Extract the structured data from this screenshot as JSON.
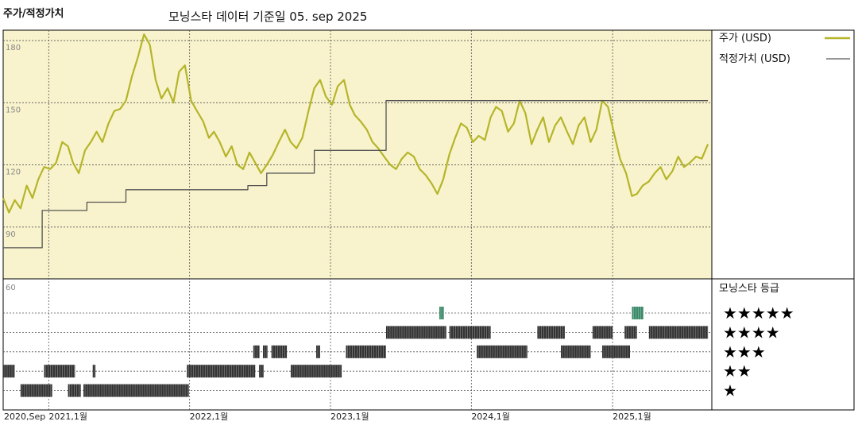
{
  "header": {
    "title": "주가/적정가치",
    "subtitle": "모닝스타 데이터 기준일 05. sep 2025"
  },
  "chart_data": {
    "type": "line",
    "price_panel": {
      "ylim": [
        65,
        185
      ],
      "yticks": [
        180,
        150,
        120,
        90
      ],
      "grid": true,
      "background": "#f8f3cc",
      "series": [
        {
          "name": "주가 (USD)",
          "color": "#b5b52a",
          "points": [
            [
              "2020-09-05",
              104
            ],
            [
              "2020-09-20",
              97
            ],
            [
              "2020-10-05",
              103
            ],
            [
              "2020-10-20",
              99
            ],
            [
              "2020-11-05",
              110
            ],
            [
              "2020-11-20",
              104
            ],
            [
              "2020-12-05",
              113
            ],
            [
              "2020-12-20",
              119
            ],
            [
              "2021-01-05",
              118
            ],
            [
              "2021-01-20",
              121
            ],
            [
              "2021-02-05",
              131
            ],
            [
              "2021-02-20",
              129
            ],
            [
              "2021-03-05",
              121
            ],
            [
              "2021-03-20",
              116
            ],
            [
              "2021-04-05",
              127
            ],
            [
              "2021-04-20",
              131
            ],
            [
              "2021-05-05",
              136
            ],
            [
              "2021-05-20",
              131
            ],
            [
              "2021-06-05",
              140
            ],
            [
              "2021-06-20",
              146
            ],
            [
              "2021-07-05",
              147
            ],
            [
              "2021-07-20",
              151
            ],
            [
              "2021-08-05",
              163
            ],
            [
              "2021-08-20",
              172
            ],
            [
              "2021-09-05",
              183
            ],
            [
              "2021-09-20",
              178
            ],
            [
              "2021-10-05",
              161
            ],
            [
              "2021-10-20",
              152
            ],
            [
              "2021-11-05",
              157
            ],
            [
              "2021-11-20",
              150
            ],
            [
              "2021-12-05",
              165
            ],
            [
              "2021-12-20",
              168
            ],
            [
              "2022-01-05",
              151
            ],
            [
              "2022-01-20",
              146
            ],
            [
              "2022-02-05",
              141
            ],
            [
              "2022-02-20",
              133
            ],
            [
              "2022-03-05",
              136
            ],
            [
              "2022-03-20",
              131
            ],
            [
              "2022-04-05",
              124
            ],
            [
              "2022-04-20",
              129
            ],
            [
              "2022-05-05",
              120
            ],
            [
              "2022-05-20",
              118
            ],
            [
              "2022-06-05",
              126
            ],
            [
              "2022-06-20",
              121
            ],
            [
              "2022-07-05",
              116
            ],
            [
              "2022-07-20",
              120
            ],
            [
              "2022-08-05",
              125
            ],
            [
              "2022-08-20",
              131
            ],
            [
              "2022-09-05",
              137
            ],
            [
              "2022-09-20",
              131
            ],
            [
              "2022-10-05",
              128
            ],
            [
              "2022-10-20",
              133
            ],
            [
              "2022-11-05",
              146
            ],
            [
              "2022-11-20",
              157
            ],
            [
              "2022-12-05",
              161
            ],
            [
              "2022-12-20",
              153
            ],
            [
              "2023-01-05",
              149
            ],
            [
              "2023-01-20",
              158
            ],
            [
              "2023-02-05",
              161
            ],
            [
              "2023-02-20",
              149
            ],
            [
              "2023-03-05",
              144
            ],
            [
              "2023-03-20",
              141
            ],
            [
              "2023-04-05",
              137
            ],
            [
              "2023-04-20",
              131
            ],
            [
              "2023-05-05",
              128
            ],
            [
              "2023-05-20",
              124
            ],
            [
              "2023-06-05",
              120
            ],
            [
              "2023-06-20",
              118
            ],
            [
              "2023-07-05",
              123
            ],
            [
              "2023-07-20",
              126
            ],
            [
              "2023-08-05",
              124
            ],
            [
              "2023-08-20",
              118
            ],
            [
              "2023-09-05",
              115
            ],
            [
              "2023-09-20",
              111
            ],
            [
              "2023-10-05",
              106
            ],
            [
              "2023-10-20",
              113
            ],
            [
              "2023-11-05",
              125
            ],
            [
              "2023-11-20",
              133
            ],
            [
              "2023-12-05",
              140
            ],
            [
              "2023-12-20",
              138
            ],
            [
              "2024-01-05",
              131
            ],
            [
              "2024-01-20",
              134
            ],
            [
              "2024-02-05",
              132
            ],
            [
              "2024-02-20",
              143
            ],
            [
              "2024-03-05",
              148
            ],
            [
              "2024-03-20",
              146
            ],
            [
              "2024-04-05",
              136
            ],
            [
              "2024-04-20",
              140
            ],
            [
              "2024-05-05",
              151
            ],
            [
              "2024-05-20",
              145
            ],
            [
              "2024-06-05",
              130
            ],
            [
              "2024-06-20",
              137
            ],
            [
              "2024-07-05",
              143
            ],
            [
              "2024-07-20",
              131
            ],
            [
              "2024-08-05",
              139
            ],
            [
              "2024-08-20",
              143
            ],
            [
              "2024-09-05",
              136
            ],
            [
              "2024-09-20",
              130
            ],
            [
              "2024-10-05",
              139
            ],
            [
              "2024-10-20",
              143
            ],
            [
              "2024-11-05",
              131
            ],
            [
              "2024-11-20",
              137
            ],
            [
              "2024-12-05",
              151
            ],
            [
              "2024-12-20",
              148
            ],
            [
              "2025-01-05",
              135
            ],
            [
              "2025-01-20",
              123
            ],
            [
              "2025-02-05",
              116
            ],
            [
              "2025-02-20",
              105
            ],
            [
              "2025-03-05",
              106
            ],
            [
              "2025-03-20",
              110
            ],
            [
              "2025-04-05",
              112
            ],
            [
              "2025-04-20",
              116
            ],
            [
              "2025-05-05",
              119
            ],
            [
              "2025-05-20",
              113
            ],
            [
              "2025-06-05",
              117
            ],
            [
              "2025-06-20",
              124
            ],
            [
              "2025-07-05",
              119
            ],
            [
              "2025-07-20",
              121
            ],
            [
              "2025-08-05",
              124
            ],
            [
              "2025-08-20",
              123
            ],
            [
              "2025-09-05",
              130
            ]
          ]
        },
        {
          "name": "적정가치 (USD)",
          "color": "#555555",
          "step": true,
          "points": [
            [
              "2020-09-05",
              80
            ],
            [
              "2020-12-15",
              80
            ],
            [
              "2020-12-15",
              98
            ],
            [
              "2021-04-10",
              98
            ],
            [
              "2021-04-10",
              102
            ],
            [
              "2021-07-20",
              102
            ],
            [
              "2021-07-20",
              108
            ],
            [
              "2022-06-01",
              108
            ],
            [
              "2022-06-01",
              110
            ],
            [
              "2022-07-20",
              110
            ],
            [
              "2022-07-20",
              116
            ],
            [
              "2022-11-20",
              116
            ],
            [
              "2022-11-20",
              127
            ],
            [
              "2023-05-25",
              127
            ],
            [
              "2023-05-25",
              151
            ],
            [
              "2025-09-05",
              151
            ]
          ]
        }
      ]
    },
    "rating_panel": {
      "title": "모닝스타 등급",
      "ytick": 60,
      "rows": [
        "★★★★★",
        "★★★★",
        "★★★",
        "★★",
        "★"
      ],
      "segments": [
        {
          "stars": 5,
          "start": "2023-10-10",
          "end": "2023-10-22",
          "color": "#3c8a6a"
        },
        {
          "stars": 5,
          "start": "2025-02-20",
          "end": "2025-03-22",
          "color": "#3c8a6a"
        },
        {
          "stars": 4,
          "start": "2023-05-25",
          "end": "2023-10-28",
          "color": "#333333"
        },
        {
          "stars": 4,
          "start": "2023-11-05",
          "end": "2024-02-20",
          "color": "#333333"
        },
        {
          "stars": 4,
          "start": "2024-06-20",
          "end": "2024-08-30",
          "color": "#333333"
        },
        {
          "stars": 4,
          "start": "2024-11-10",
          "end": "2025-01-01",
          "color": "#333333"
        },
        {
          "stars": 4,
          "start": "2025-02-01",
          "end": "2025-03-05",
          "color": "#333333"
        },
        {
          "stars": 4,
          "start": "2025-04-05",
          "end": "2025-09-05",
          "color": "#333333"
        },
        {
          "stars": 3,
          "start": "2022-06-15",
          "end": "2022-07-01",
          "color": "#333333"
        },
        {
          "stars": 3,
          "start": "2022-07-10",
          "end": "2022-07-22",
          "color": "#333333"
        },
        {
          "stars": 3,
          "start": "2022-08-01",
          "end": "2022-09-10",
          "color": "#333333"
        },
        {
          "stars": 3,
          "start": "2022-11-25",
          "end": "2022-12-05",
          "color": "#333333"
        },
        {
          "stars": 3,
          "start": "2023-02-10",
          "end": "2023-05-25",
          "color": "#333333"
        },
        {
          "stars": 3,
          "start": "2024-01-15",
          "end": "2024-05-25",
          "color": "#333333"
        },
        {
          "stars": 3,
          "start": "2024-08-20",
          "end": "2024-11-05",
          "color": "#333333"
        },
        {
          "stars": 3,
          "start": "2024-12-05",
          "end": "2025-02-15",
          "color": "#333333"
        },
        {
          "stars": 2,
          "start": "2020-09-05",
          "end": "2020-10-05",
          "color": "#333333"
        },
        {
          "stars": 2,
          "start": "2020-12-20",
          "end": "2021-03-10",
          "color": "#333333"
        },
        {
          "stars": 2,
          "start": "2021-04-25",
          "end": "2021-05-02",
          "color": "#333333"
        },
        {
          "stars": 2,
          "start": "2021-12-25",
          "end": "2022-06-20",
          "color": "#333333"
        },
        {
          "stars": 2,
          "start": "2022-06-30",
          "end": "2022-07-12",
          "color": "#333333"
        },
        {
          "stars": 2,
          "start": "2022-09-20",
          "end": "2023-01-30",
          "color": "#333333"
        },
        {
          "stars": 1,
          "start": "2020-10-20",
          "end": "2021-01-10",
          "color": "#333333"
        },
        {
          "stars": 1,
          "start": "2021-02-20",
          "end": "2021-03-25",
          "color": "#333333"
        },
        {
          "stars": 1,
          "start": "2021-04-01",
          "end": "2021-12-30",
          "color": "#333333"
        }
      ]
    },
    "x_axis": {
      "range": [
        "2020-09-05",
        "2025-09-15"
      ],
      "ticks": [
        {
          "date": "2020-09-05",
          "label": "2020,Sep"
        },
        {
          "date": "2021-01-01",
          "label": "2021,1월"
        },
        {
          "date": "2022-01-01",
          "label": "2022,1월"
        },
        {
          "date": "2023-01-01",
          "label": "2023,1월"
        },
        {
          "date": "2024-01-01",
          "label": "2024,1월"
        },
        {
          "date": "2025-01-01",
          "label": "2025,1월"
        }
      ]
    },
    "legend": {
      "placement": "right",
      "entries": [
        {
          "label": "주가 (USD)",
          "color": "#b5b52a"
        },
        {
          "label": "적정가치 (USD)",
          "color": "#555555"
        }
      ]
    }
  }
}
